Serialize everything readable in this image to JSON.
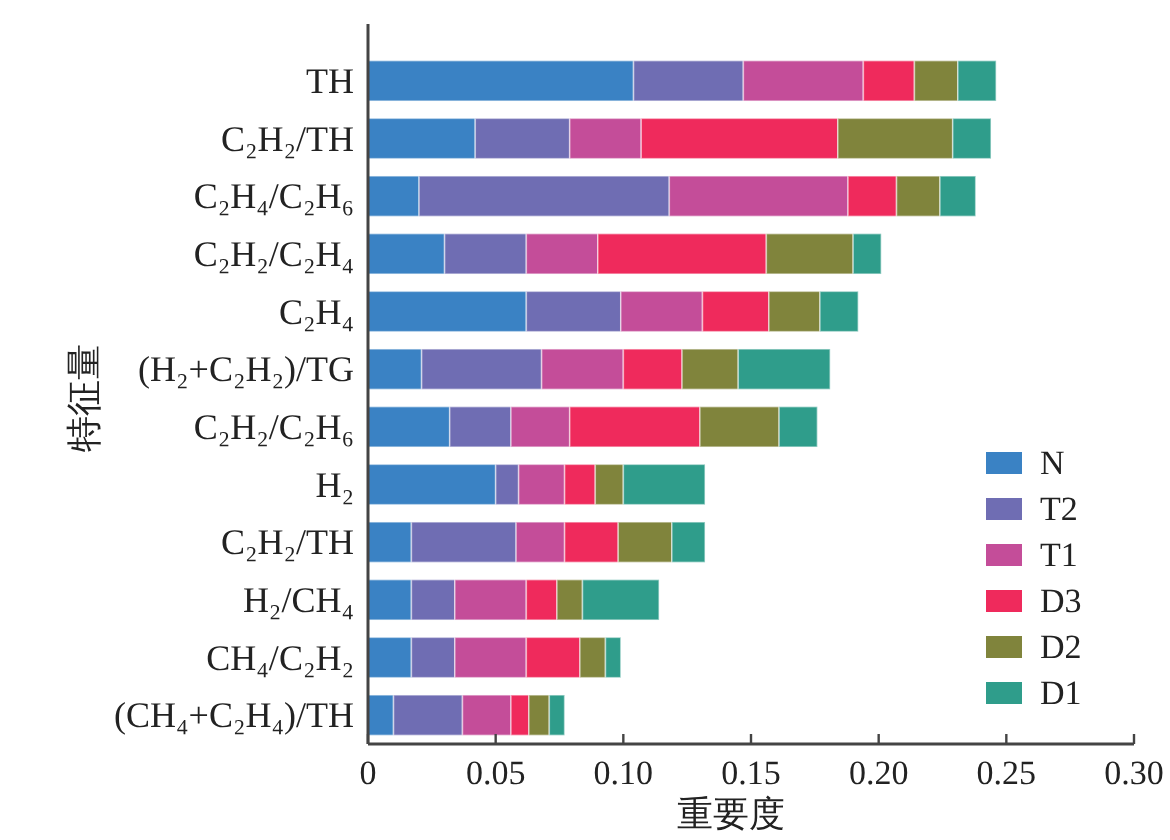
{
  "chart_data": {
    "type": "bar",
    "orientation": "horizontal",
    "stacked": true,
    "xlabel": "重要度",
    "ylabel": "特征量",
    "categories": [
      "TH",
      "C₂H₂/TH",
      "C₂H₄/C₂H₆",
      "C₂H₂/C₂H₄",
      "C₂H₄",
      "(H₂+C₂H₂)/TG",
      "C₂H₂/C₂H₆",
      "H₂",
      "C₂H₂/TH",
      "H₂/CH₄",
      "CH₄/C₂H₂",
      "(CH₄+C₂H₄)/TH"
    ],
    "series": [
      {
        "name": "N",
        "color": "#3a82c4",
        "values": [
          0.104,
          0.042,
          0.02,
          0.03,
          0.062,
          0.021,
          0.032,
          0.05,
          0.017,
          0.017,
          0.017,
          0.01
        ]
      },
      {
        "name": "T2",
        "color": "#6f6db3",
        "values": [
          0.043,
          0.037,
          0.098,
          0.032,
          0.037,
          0.047,
          0.024,
          0.009,
          0.041,
          0.017,
          0.017,
          0.027
        ]
      },
      {
        "name": "T1",
        "color": "#c44d99",
        "values": [
          0.047,
          0.028,
          0.07,
          0.028,
          0.032,
          0.032,
          0.023,
          0.018,
          0.019,
          0.028,
          0.028,
          0.019
        ]
      },
      {
        "name": "D3",
        "color": "#ef2a5c",
        "values": [
          0.02,
          0.077,
          0.019,
          0.066,
          0.026,
          0.023,
          0.051,
          0.012,
          0.021,
          0.012,
          0.021,
          0.007
        ]
      },
      {
        "name": "D2",
        "color": "#80843c",
        "values": [
          0.017,
          0.045,
          0.017,
          0.034,
          0.02,
          0.022,
          0.031,
          0.011,
          0.021,
          0.01,
          0.01,
          0.008
        ]
      },
      {
        "name": "D1",
        "color": "#2f9d8b",
        "values": [
          0.015,
          0.015,
          0.014,
          0.011,
          0.015,
          0.036,
          0.015,
          0.032,
          0.013,
          0.03,
          0.006,
          0.006
        ]
      }
    ],
    "xlim": [
      0,
      0.3
    ],
    "xticks": [
      0,
      0.05,
      {
        "value": 0.1,
        "label": "0.10"
      },
      0.15,
      {
        "value": 0.2,
        "label": "0.20"
      },
      0.25,
      {
        "value": 0.3,
        "label": "0.30"
      }
    ],
    "legend": "bottom right",
    "grid": false
  }
}
